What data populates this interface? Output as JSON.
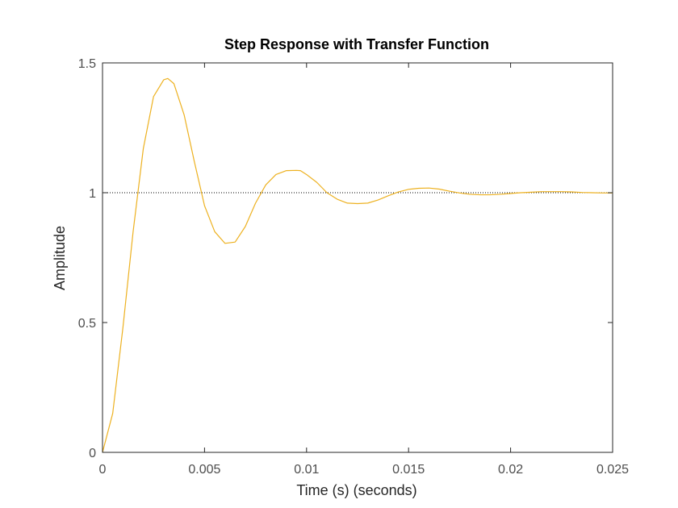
{
  "chart_data": {
    "type": "line",
    "title": "Step Response with Transfer Function",
    "xlabel": "Time (s) (seconds)",
    "ylabel": "Amplitude",
    "xlim": [
      0,
      0.025
    ],
    "ylim": [
      0,
      1.5
    ],
    "x_ticks": [
      "0",
      "0.005",
      "0.01",
      "0.015",
      "0.02",
      "0.025"
    ],
    "x_tick_values": [
      0,
      0.005,
      0.01,
      0.015,
      0.02,
      0.025
    ],
    "y_ticks": [
      "0",
      "0.5",
      "1",
      "1.5"
    ],
    "y_tick_values": [
      0,
      0.5,
      1,
      1.5
    ],
    "grid": false,
    "reference_line": {
      "y": 1,
      "style": "dotted",
      "color": "#000000"
    },
    "series": [
      {
        "color": "#EDB120",
        "x": [
          0,
          0.0005,
          0.001,
          0.0015,
          0.002,
          0.0025,
          0.003,
          0.0032,
          0.0035,
          0.004,
          0.0045,
          0.005,
          0.0055,
          0.006,
          0.0065,
          0.007,
          0.0075,
          0.008,
          0.0085,
          0.009,
          0.0095,
          0.0097,
          0.01,
          0.0105,
          0.011,
          0.0115,
          0.012,
          0.0125,
          0.013,
          0.0135,
          0.014,
          0.0145,
          0.015,
          0.0155,
          0.016,
          0.0165,
          0.017,
          0.0175,
          0.018,
          0.0185,
          0.019,
          0.0195,
          0.02,
          0.0205,
          0.021,
          0.0215,
          0.022,
          0.0225,
          0.023,
          0.0235,
          0.024,
          0.0245,
          0.025
        ],
        "y": [
          0,
          0.15,
          0.48,
          0.85,
          1.17,
          1.37,
          1.435,
          1.44,
          1.42,
          1.3,
          1.12,
          0.95,
          0.85,
          0.805,
          0.81,
          0.87,
          0.96,
          1.03,
          1.07,
          1.085,
          1.086,
          1.085,
          1.07,
          1.04,
          1.0,
          0.975,
          0.96,
          0.958,
          0.96,
          0.972,
          0.988,
          1.003,
          1.013,
          1.017,
          1.018,
          1.014,
          1.006,
          0.999,
          0.994,
          0.992,
          0.992,
          0.994,
          0.997,
          1.0,
          1.002,
          1.004,
          1.004,
          1.004,
          1.003,
          1.001,
          1.0,
          0.999,
          0.999
        ]
      }
    ]
  }
}
